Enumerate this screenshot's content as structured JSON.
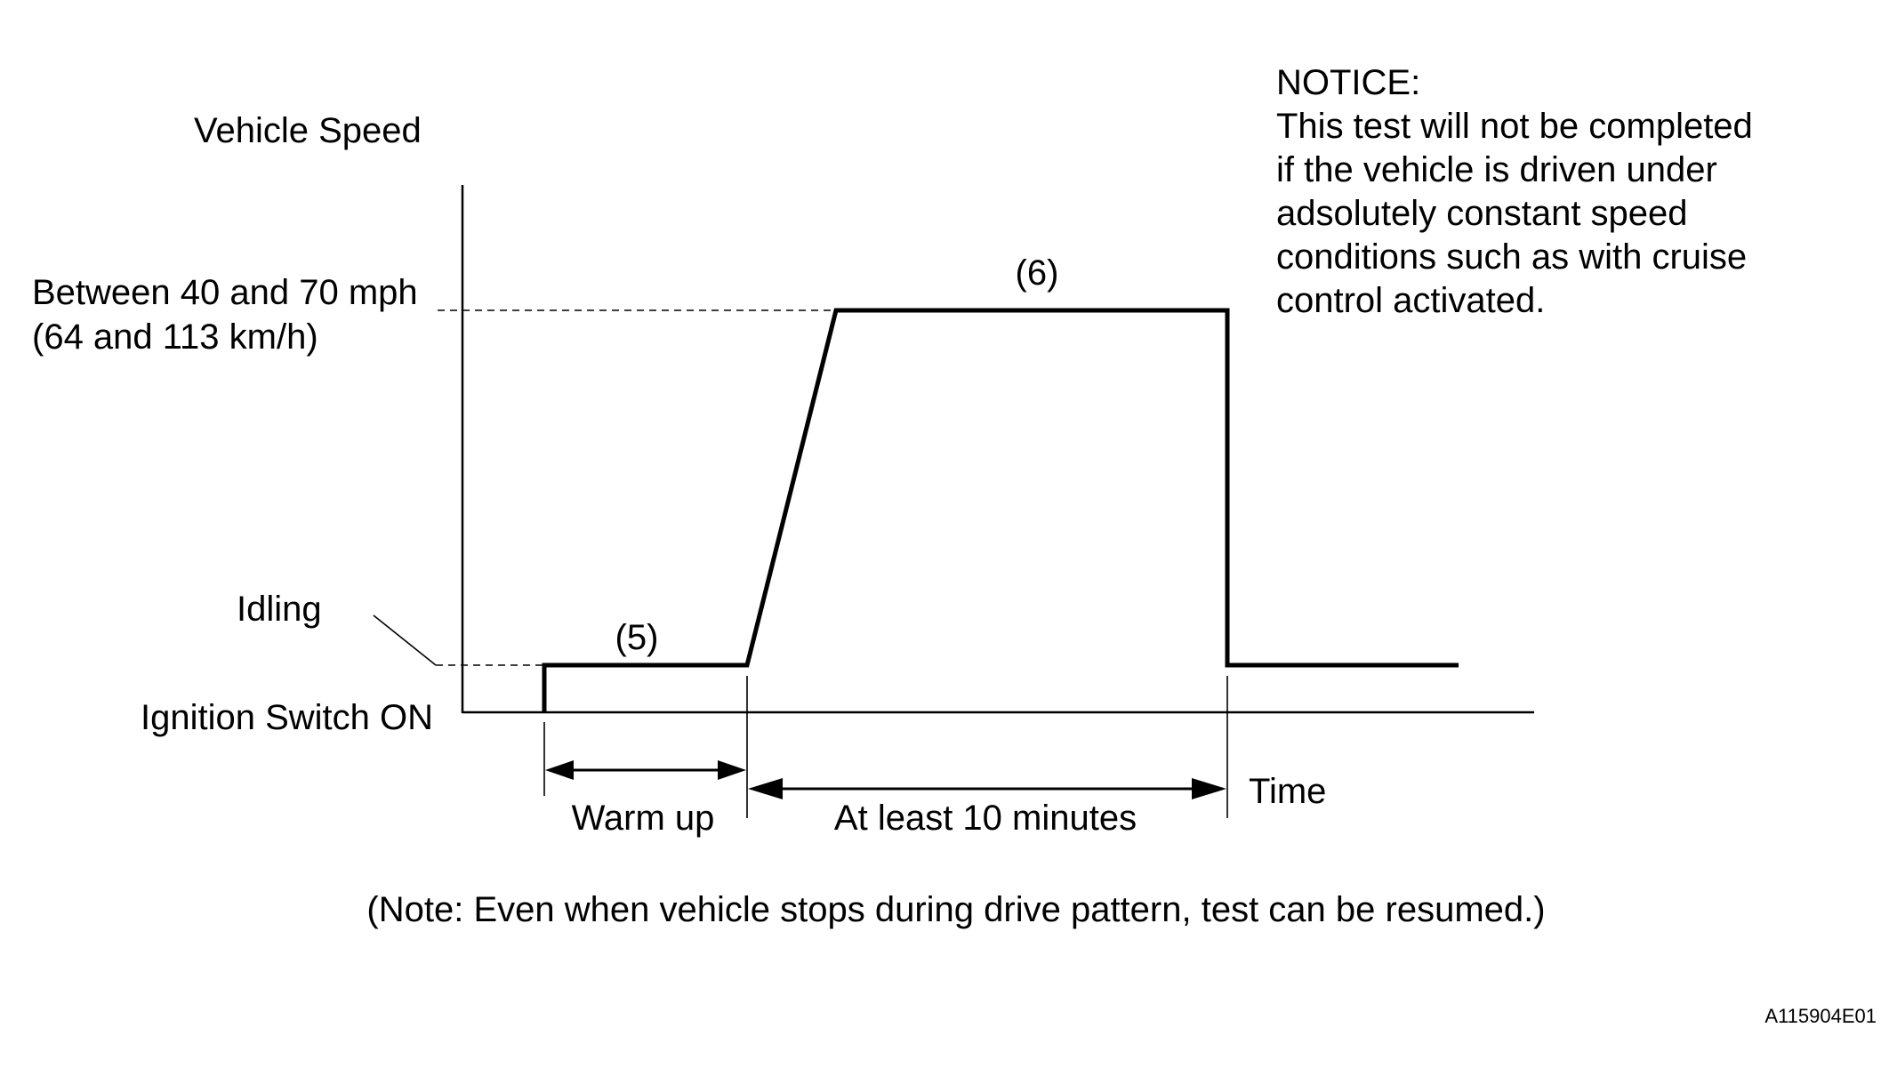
{
  "diagram": {
    "y_axis_label": "Vehicle Speed",
    "speed_label_line1": "Between 40 and 70 mph",
    "speed_label_line2": "(64 and 113 km/h)",
    "idling_label": "Idling",
    "ignition_label": "Ignition Switch ON",
    "x_axis_label": "Time",
    "phase_5_label": "(5)",
    "phase_6_label": "(6)",
    "warm_up_label": "Warm up",
    "duration_label": "At least 10 minutes",
    "notice": {
      "title": "NOTICE:",
      "lines": [
        "This test will not be completed",
        "if the vehicle is driven under",
        "adsolutely constant speed",
        "conditions such as with cruise",
        "control activated."
      ]
    },
    "note": "(Note: Even when vehicle stops during drive pattern, test can be resumed.)",
    "figure_id": "A115904E01"
  }
}
